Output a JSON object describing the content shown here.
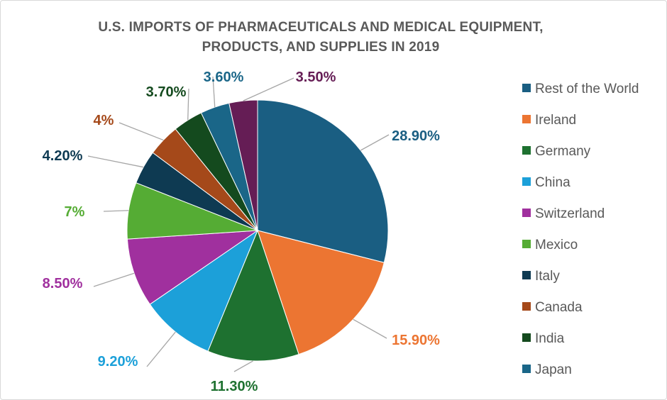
{
  "chart_data": {
    "type": "pie",
    "title_lines": [
      "U.S. IMPORTS OF PHARMACEUTICALS AND MEDICAL EQUIPMENT,",
      "PRODUCTS, AND SUPPLIES IN 2019"
    ],
    "legend_position": "right",
    "slices": [
      {
        "name": "Rest of the World",
        "value": 28.9,
        "label": "28.90%",
        "color": "#1A5E82"
      },
      {
        "name": "Ireland",
        "value": 15.9,
        "label": "15.90%",
        "color": "#EC7532"
      },
      {
        "name": "Germany",
        "value": 11.3,
        "label": "11.30%",
        "color": "#1E7130"
      },
      {
        "name": "China",
        "value": 9.2,
        "label": "9.20%",
        "color": "#1CA0D9"
      },
      {
        "name": "Switzerland",
        "value": 8.5,
        "label": "8.50%",
        "color": "#A0309E"
      },
      {
        "name": "Mexico",
        "value": 7.0,
        "label": "7%",
        "color": "#55AC34"
      },
      {
        "name": "Italy",
        "value": 4.2,
        "label": "4.20%",
        "color": "#0E3A52"
      },
      {
        "name": "Canada",
        "value": 4.0,
        "label": "4%",
        "color": "#A5491A"
      },
      {
        "name": "India",
        "value": 3.7,
        "label": "3.70%",
        "color": "#144A1E"
      },
      {
        "name": "Japan",
        "value": 3.6,
        "label": "3.60%",
        "color": "#1A6688"
      },
      {
        "name": null,
        "value": 3.5,
        "label": "3.50%",
        "color": "#651D55"
      }
    ]
  }
}
